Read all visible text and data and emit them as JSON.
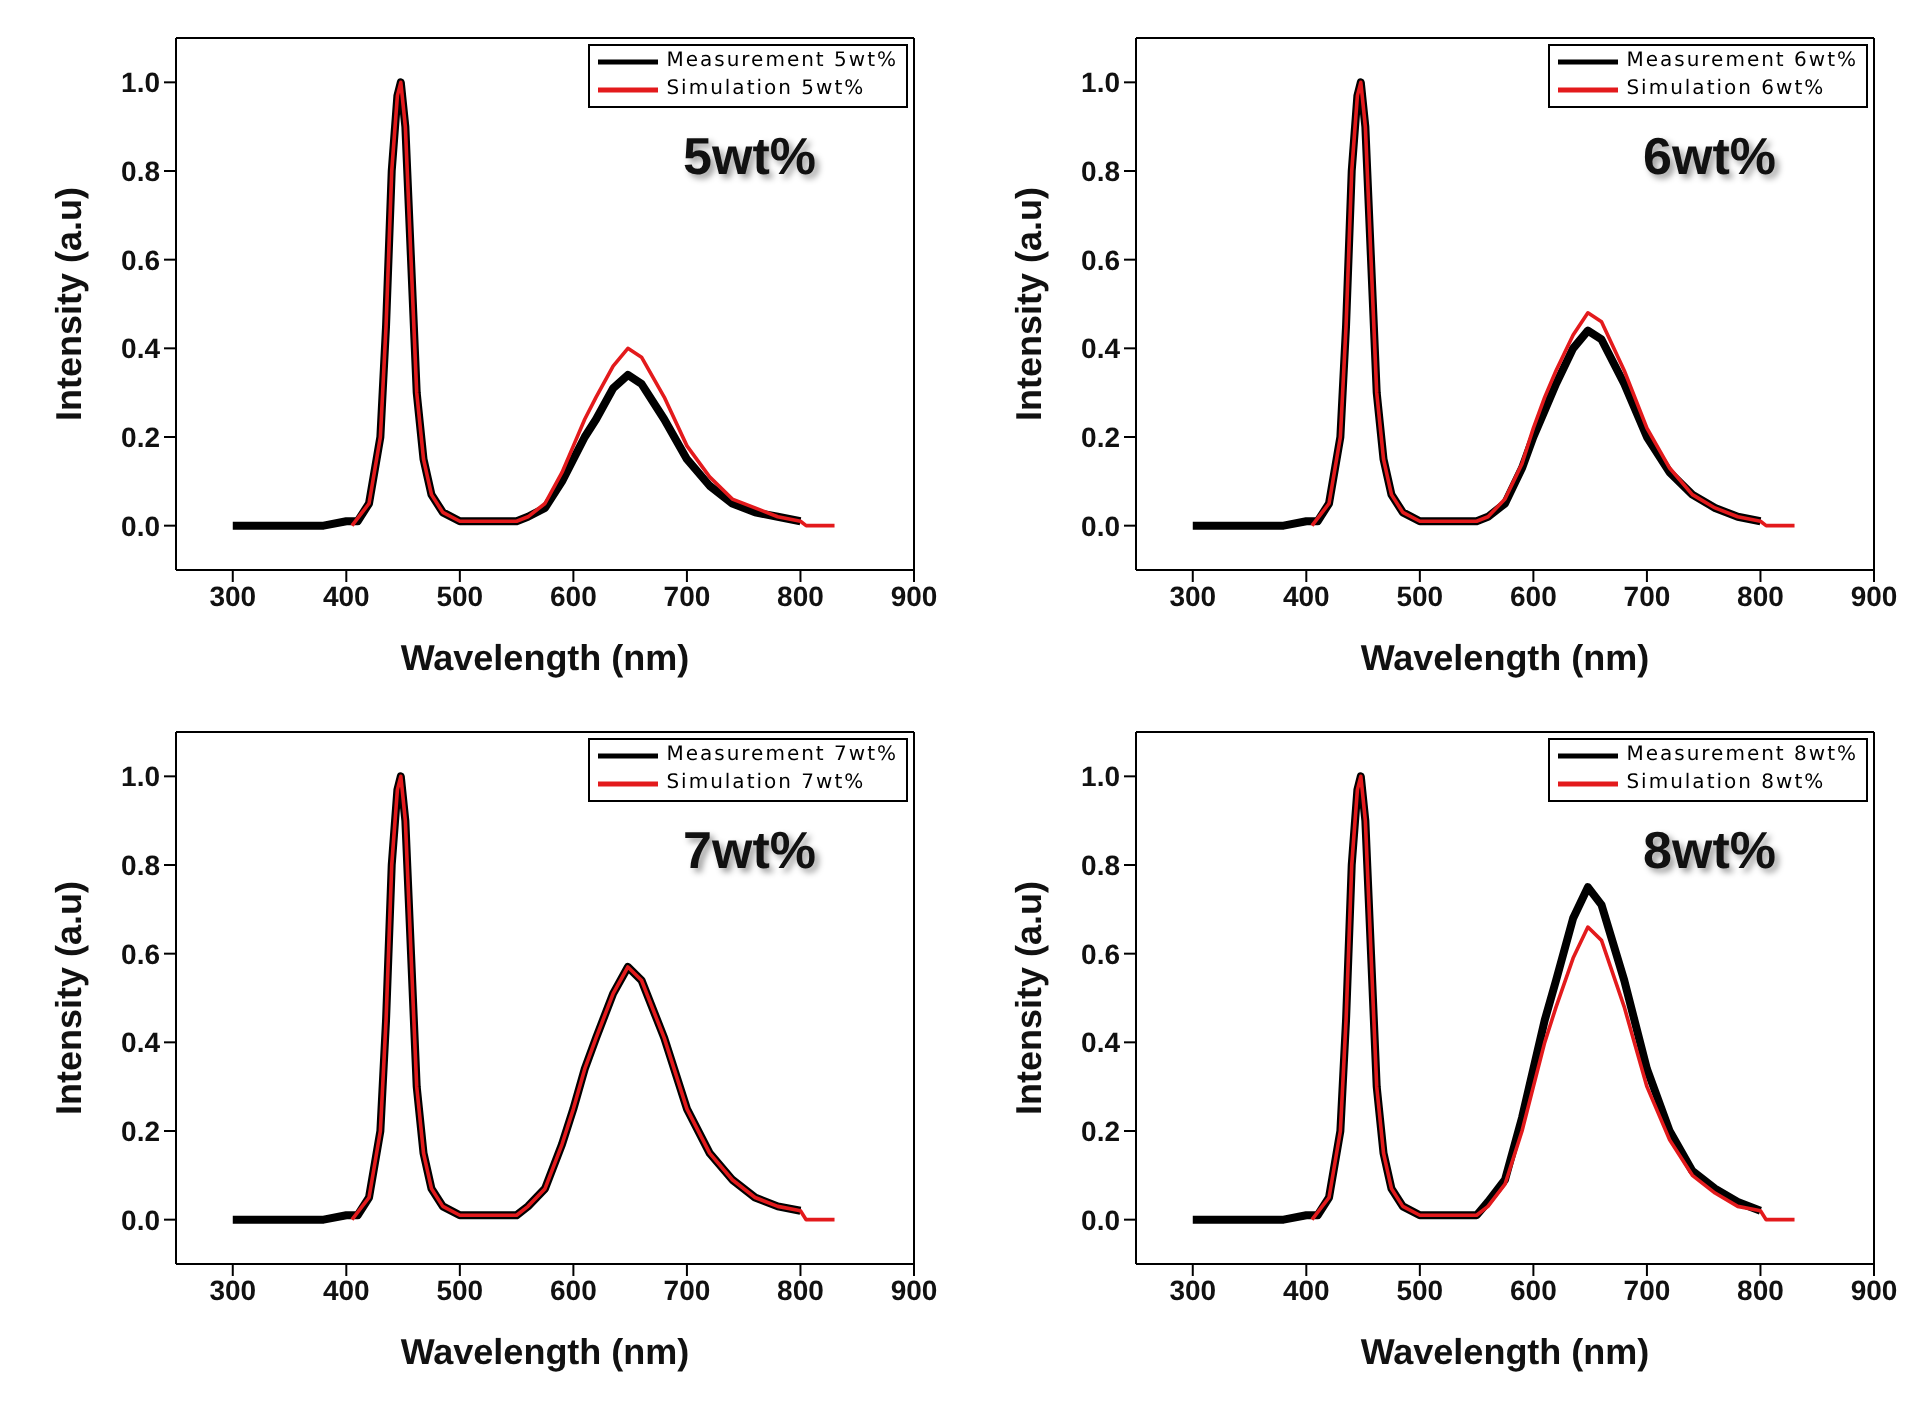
{
  "chart_data": [
    {
      "type": "line",
      "xlabel": "Wavelength (nm)",
      "ylabel": "Intensity (a.u)",
      "annotations": [
        "5wt%"
      ],
      "legend": "top right",
      "line_style": "solid",
      "marker": "none",
      "xlim": [
        250,
        900
      ],
      "xticks": [
        300,
        400,
        500,
        600,
        700,
        800,
        900
      ],
      "ylim": [
        -0.1,
        1.1
      ],
      "yticks": [
        {
          "value": 0,
          "label": "0.0"
        },
        {
          "value": 0.2,
          "label": "0.2"
        },
        {
          "value": 0.4,
          "label": "0.4"
        },
        {
          "value": 0.6,
          "label": "0.6"
        },
        {
          "value": 0.8,
          "label": "0.8"
        },
        {
          "value": 1,
          "label": "1.0"
        }
      ],
      "series": [
        {
          "name": "Measurement 5wt%",
          "color": "#000000",
          "x": [
            300,
            380,
            400,
            410,
            420,
            430,
            435,
            440,
            445,
            448,
            452,
            457,
            462,
            468,
            475,
            485,
            500,
            520,
            550,
            560,
            575,
            590,
            600,
            610,
            620,
            635,
            648,
            660,
            680,
            700,
            720,
            740,
            760,
            780,
            800
          ],
          "values": [
            0,
            0,
            0.01,
            0.01,
            0.05,
            0.2,
            0.45,
            0.8,
            0.97,
            1.0,
            0.9,
            0.6,
            0.3,
            0.15,
            0.07,
            0.03,
            0.01,
            0.01,
            0.01,
            0.02,
            0.04,
            0.1,
            0.15,
            0.2,
            0.24,
            0.31,
            0.34,
            0.32,
            0.24,
            0.15,
            0.09,
            0.05,
            0.03,
            0.02,
            0.01
          ]
        },
        {
          "name": "Simulation 5wt%",
          "color": "#e31a1c",
          "x": [
            405,
            420,
            430,
            435,
            440,
            445,
            448,
            452,
            457,
            462,
            468,
            475,
            485,
            500,
            520,
            550,
            560,
            575,
            590,
            600,
            610,
            620,
            635,
            648,
            660,
            680,
            700,
            720,
            740,
            760,
            780,
            800,
            805,
            830
          ],
          "values": [
            0,
            0.05,
            0.2,
            0.45,
            0.8,
            0.97,
            1.0,
            0.9,
            0.6,
            0.3,
            0.15,
            0.07,
            0.03,
            0.01,
            0.01,
            0.01,
            0.02,
            0.05,
            0.12,
            0.18,
            0.24,
            0.29,
            0.36,
            0.4,
            0.38,
            0.29,
            0.18,
            0.11,
            0.06,
            0.04,
            0.02,
            0.01,
            0,
            0
          ]
        }
      ]
    },
    {
      "type": "line",
      "xlabel": "Wavelength (nm)",
      "ylabel": "Intensity (a.u)",
      "annotations": [
        "6wt%"
      ],
      "legend": "top right",
      "line_style": "solid",
      "marker": "none",
      "xlim": [
        250,
        900
      ],
      "xticks": [
        300,
        400,
        500,
        600,
        700,
        800,
        900
      ],
      "ylim": [
        -0.1,
        1.1
      ],
      "yticks": [
        {
          "value": 0,
          "label": "0.0"
        },
        {
          "value": 0.2,
          "label": "0.2"
        },
        {
          "value": 0.4,
          "label": "0.4"
        },
        {
          "value": 0.6,
          "label": "0.6"
        },
        {
          "value": 0.8,
          "label": "0.8"
        },
        {
          "value": 1,
          "label": "1.0"
        }
      ],
      "series": [
        {
          "name": "Measurement 6wt%",
          "color": "#000000",
          "x": [
            300,
            380,
            400,
            410,
            420,
            430,
            435,
            440,
            445,
            448,
            452,
            457,
            462,
            468,
            475,
            485,
            500,
            520,
            550,
            560,
            575,
            590,
            600,
            610,
            620,
            635,
            648,
            660,
            680,
            700,
            720,
            740,
            760,
            780,
            800
          ],
          "values": [
            0,
            0,
            0.01,
            0.01,
            0.05,
            0.2,
            0.45,
            0.8,
            0.97,
            1.0,
            0.9,
            0.6,
            0.3,
            0.15,
            0.07,
            0.03,
            0.01,
            0.01,
            0.01,
            0.02,
            0.05,
            0.13,
            0.2,
            0.26,
            0.32,
            0.4,
            0.44,
            0.42,
            0.32,
            0.2,
            0.12,
            0.07,
            0.04,
            0.02,
            0.01
          ]
        },
        {
          "name": "Simulation 6wt%",
          "color": "#e31a1c",
          "x": [
            405,
            420,
            430,
            435,
            440,
            445,
            448,
            452,
            457,
            462,
            468,
            475,
            485,
            500,
            520,
            550,
            560,
            575,
            590,
            600,
            610,
            620,
            635,
            648,
            660,
            680,
            700,
            720,
            740,
            760,
            780,
            800,
            805,
            830
          ],
          "values": [
            0,
            0.05,
            0.2,
            0.45,
            0.8,
            0.97,
            1.0,
            0.9,
            0.6,
            0.3,
            0.15,
            0.07,
            0.03,
            0.01,
            0.01,
            0.01,
            0.02,
            0.06,
            0.14,
            0.22,
            0.29,
            0.35,
            0.43,
            0.48,
            0.46,
            0.35,
            0.22,
            0.13,
            0.07,
            0.04,
            0.02,
            0.01,
            0,
            0
          ]
        }
      ]
    },
    {
      "type": "line",
      "xlabel": "Wavelength (nm)",
      "ylabel": "Intensity (a.u)",
      "annotations": [
        "7wt%"
      ],
      "legend": "top right",
      "line_style": "solid",
      "marker": "none",
      "xlim": [
        250,
        900
      ],
      "xticks": [
        300,
        400,
        500,
        600,
        700,
        800,
        900
      ],
      "ylim": [
        -0.1,
        1.1
      ],
      "yticks": [
        {
          "value": 0,
          "label": "0.0"
        },
        {
          "value": 0.2,
          "label": "0.2"
        },
        {
          "value": 0.4,
          "label": "0.4"
        },
        {
          "value": 0.6,
          "label": "0.6"
        },
        {
          "value": 0.8,
          "label": "0.8"
        },
        {
          "value": 1,
          "label": "1.0"
        }
      ],
      "series": [
        {
          "name": "Measurement 7wt%",
          "color": "#000000",
          "x": [
            300,
            380,
            400,
            410,
            420,
            430,
            435,
            440,
            445,
            448,
            452,
            457,
            462,
            468,
            475,
            485,
            500,
            520,
            550,
            560,
            575,
            590,
            600,
            610,
            620,
            635,
            648,
            660,
            680,
            700,
            720,
            740,
            760,
            780,
            800
          ],
          "values": [
            0,
            0,
            0.01,
            0.01,
            0.05,
            0.2,
            0.45,
            0.8,
            0.97,
            1.0,
            0.9,
            0.6,
            0.3,
            0.15,
            0.07,
            0.03,
            0.01,
            0.01,
            0.01,
            0.03,
            0.07,
            0.17,
            0.25,
            0.34,
            0.41,
            0.51,
            0.57,
            0.54,
            0.41,
            0.25,
            0.15,
            0.09,
            0.05,
            0.03,
            0.02
          ]
        },
        {
          "name": "Simulation 7wt%",
          "color": "#e31a1c",
          "x": [
            405,
            420,
            430,
            435,
            440,
            445,
            448,
            452,
            457,
            462,
            468,
            475,
            485,
            500,
            520,
            550,
            560,
            575,
            590,
            600,
            610,
            620,
            635,
            648,
            660,
            680,
            700,
            720,
            740,
            760,
            780,
            800,
            805,
            830
          ],
          "values": [
            0,
            0.05,
            0.2,
            0.45,
            0.8,
            0.97,
            1.0,
            0.9,
            0.6,
            0.3,
            0.15,
            0.07,
            0.03,
            0.01,
            0.01,
            0.01,
            0.03,
            0.07,
            0.17,
            0.25,
            0.34,
            0.41,
            0.51,
            0.57,
            0.54,
            0.41,
            0.25,
            0.15,
            0.09,
            0.05,
            0.03,
            0.02,
            0,
            0
          ]
        }
      ]
    },
    {
      "type": "line",
      "xlabel": "Wavelength (nm)",
      "ylabel": "Intensity (a.u)",
      "annotations": [
        "8wt%"
      ],
      "legend": "top right",
      "line_style": "solid",
      "marker": "none",
      "xlim": [
        250,
        900
      ],
      "xticks": [
        300,
        400,
        500,
        600,
        700,
        800,
        900
      ],
      "ylim": [
        -0.1,
        1.1
      ],
      "yticks": [
        {
          "value": 0,
          "label": "0.0"
        },
        {
          "value": 0.2,
          "label": "0.2"
        },
        {
          "value": 0.4,
          "label": "0.4"
        },
        {
          "value": 0.6,
          "label": "0.6"
        },
        {
          "value": 0.8,
          "label": "0.8"
        },
        {
          "value": 1,
          "label": "1.0"
        }
      ],
      "series": [
        {
          "name": "Measurement 8wt%",
          "color": "#000000",
          "x": [
            300,
            380,
            400,
            410,
            420,
            430,
            435,
            440,
            445,
            448,
            452,
            457,
            462,
            468,
            475,
            485,
            500,
            520,
            550,
            560,
            575,
            590,
            600,
            610,
            620,
            635,
            648,
            660,
            680,
            700,
            720,
            740,
            760,
            780,
            800
          ],
          "values": [
            0,
            0,
            0.01,
            0.01,
            0.05,
            0.2,
            0.45,
            0.8,
            0.97,
            1.0,
            0.9,
            0.6,
            0.3,
            0.15,
            0.07,
            0.03,
            0.01,
            0.01,
            0.01,
            0.04,
            0.09,
            0.23,
            0.34,
            0.45,
            0.54,
            0.68,
            0.75,
            0.71,
            0.54,
            0.34,
            0.2,
            0.11,
            0.07,
            0.04,
            0.02
          ]
        },
        {
          "name": "Simulation 8wt%",
          "color": "#e31a1c",
          "x": [
            405,
            420,
            430,
            435,
            440,
            445,
            448,
            452,
            457,
            462,
            468,
            475,
            485,
            500,
            520,
            550,
            560,
            575,
            590,
            600,
            610,
            620,
            635,
            648,
            660,
            680,
            700,
            720,
            740,
            760,
            780,
            800,
            805,
            830
          ],
          "values": [
            0,
            0.05,
            0.2,
            0.45,
            0.8,
            0.97,
            1.0,
            0.9,
            0.6,
            0.3,
            0.15,
            0.07,
            0.03,
            0.01,
            0.01,
            0.01,
            0.03,
            0.08,
            0.2,
            0.3,
            0.4,
            0.48,
            0.59,
            0.66,
            0.63,
            0.48,
            0.3,
            0.18,
            0.1,
            0.06,
            0.03,
            0.02,
            0,
            0
          ]
        }
      ]
    }
  ]
}
